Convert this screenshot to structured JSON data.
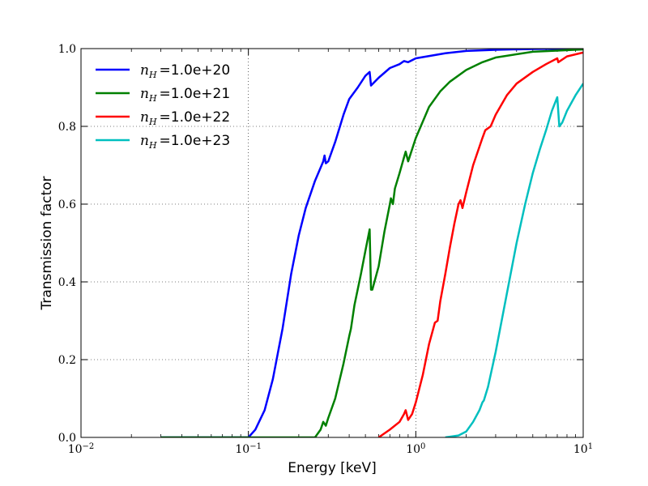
{
  "chart_data": {
    "type": "line",
    "xlabel": "Energy [keV]",
    "ylabel": "Transmission factor",
    "xscale": "log",
    "xlim": [
      0.01,
      10
    ],
    "ylim": [
      0.0,
      1.0
    ],
    "grid": true,
    "legend_position": "top-left",
    "x_ticks": [
      {
        "value": 0.01,
        "base": "10",
        "exp": "−2"
      },
      {
        "value": 0.1,
        "base": "10",
        "exp": "−1"
      },
      {
        "value": 1,
        "base": "10",
        "exp": "0"
      },
      {
        "value": 10,
        "base": "10",
        "exp": "1"
      }
    ],
    "y_ticks": [
      {
        "value": 0.0,
        "label": "0.0"
      },
      {
        "value": 0.2,
        "label": "0.2"
      },
      {
        "value": 0.4,
        "label": "0.4"
      },
      {
        "value": 0.6,
        "label": "0.6"
      },
      {
        "value": 0.8,
        "label": "0.8"
      },
      {
        "value": 1.0,
        "label": "1.0"
      }
    ],
    "series": [
      {
        "name": "n_H =1.0e+20",
        "legend_symbol": "n",
        "legend_sub": "H",
        "legend_value": "=1.0e+20",
        "color": "#0000ff",
        "points": [
          [
            0.03,
            0.0
          ],
          [
            0.1,
            0.0
          ],
          [
            0.11,
            0.02
          ],
          [
            0.125,
            0.07
          ],
          [
            0.14,
            0.15
          ],
          [
            0.16,
            0.28
          ],
          [
            0.18,
            0.42
          ],
          [
            0.2,
            0.52
          ],
          [
            0.22,
            0.59
          ],
          [
            0.25,
            0.66
          ],
          [
            0.28,
            0.71
          ],
          [
            0.285,
            0.725
          ],
          [
            0.29,
            0.705
          ],
          [
            0.3,
            0.71
          ],
          [
            0.33,
            0.76
          ],
          [
            0.37,
            0.83
          ],
          [
            0.4,
            0.87
          ],
          [
            0.45,
            0.9
          ],
          [
            0.5,
            0.93
          ],
          [
            0.53,
            0.94
          ],
          [
            0.54,
            0.905
          ],
          [
            0.6,
            0.925
          ],
          [
            0.7,
            0.95
          ],
          [
            0.8,
            0.96
          ],
          [
            0.85,
            0.968
          ],
          [
            0.9,
            0.965
          ],
          [
            1.0,
            0.975
          ],
          [
            1.5,
            0.988
          ],
          [
            2,
            0.994
          ],
          [
            3,
            0.997
          ],
          [
            5,
            0.999
          ],
          [
            10,
            1.0
          ]
        ]
      },
      {
        "name": "n_H =1.0e+21",
        "legend_symbol": "n",
        "legend_sub": "H",
        "legend_value": "=1.0e+21",
        "color": "#008000",
        "points": [
          [
            0.03,
            0.0
          ],
          [
            0.25,
            0.0
          ],
          [
            0.27,
            0.02
          ],
          [
            0.28,
            0.04
          ],
          [
            0.29,
            0.03
          ],
          [
            0.3,
            0.05
          ],
          [
            0.33,
            0.1
          ],
          [
            0.37,
            0.19
          ],
          [
            0.4,
            0.26
          ],
          [
            0.41,
            0.28
          ],
          [
            0.43,
            0.34
          ],
          [
            0.47,
            0.42
          ],
          [
            0.5,
            0.48
          ],
          [
            0.53,
            0.535
          ],
          [
            0.54,
            0.38
          ],
          [
            0.55,
            0.38
          ],
          [
            0.6,
            0.44
          ],
          [
            0.65,
            0.53
          ],
          [
            0.7,
            0.6
          ],
          [
            0.71,
            0.615
          ],
          [
            0.73,
            0.6
          ],
          [
            0.75,
            0.64
          ],
          [
            0.8,
            0.68
          ],
          [
            0.85,
            0.72
          ],
          [
            0.87,
            0.735
          ],
          [
            0.9,
            0.71
          ],
          [
            1.0,
            0.77
          ],
          [
            1.2,
            0.85
          ],
          [
            1.4,
            0.89
          ],
          [
            1.6,
            0.915
          ],
          [
            2,
            0.945
          ],
          [
            2.5,
            0.965
          ],
          [
            3,
            0.977
          ],
          [
            5,
            0.992
          ],
          [
            10,
            0.998
          ]
        ]
      },
      {
        "name": "n_H =1.0e+22",
        "legend_symbol": "n",
        "legend_sub": "H",
        "legend_value": "=1.0e+22",
        "color": "#ff0000",
        "points": [
          [
            0.6,
            0.0
          ],
          [
            0.7,
            0.02
          ],
          [
            0.8,
            0.04
          ],
          [
            0.85,
            0.06
          ],
          [
            0.87,
            0.07
          ],
          [
            0.9,
            0.045
          ],
          [
            0.95,
            0.06
          ],
          [
            1.0,
            0.09
          ],
          [
            1.1,
            0.16
          ],
          [
            1.2,
            0.24
          ],
          [
            1.3,
            0.295
          ],
          [
            1.35,
            0.3
          ],
          [
            1.4,
            0.35
          ],
          [
            1.5,
            0.42
          ],
          [
            1.6,
            0.49
          ],
          [
            1.7,
            0.55
          ],
          [
            1.8,
            0.6
          ],
          [
            1.85,
            0.61
          ],
          [
            1.9,
            0.59
          ],
          [
            2,
            0.63
          ],
          [
            2.2,
            0.7
          ],
          [
            2.5,
            0.77
          ],
          [
            2.6,
            0.79
          ],
          [
            2.8,
            0.8
          ],
          [
            3,
            0.83
          ],
          [
            3.5,
            0.88
          ],
          [
            4,
            0.91
          ],
          [
            5,
            0.94
          ],
          [
            6,
            0.96
          ],
          [
            7,
            0.975
          ],
          [
            7.1,
            0.965
          ],
          [
            8,
            0.98
          ],
          [
            10,
            0.99
          ]
        ]
      },
      {
        "name": "n_H =1.0e+23",
        "legend_symbol": "n",
        "legend_sub": "H",
        "legend_value": "=1.0e+23",
        "color": "#00bfbf",
        "points": [
          [
            1.5,
            0.0
          ],
          [
            1.8,
            0.005
          ],
          [
            2.0,
            0.015
          ],
          [
            2.2,
            0.04
          ],
          [
            2.4,
            0.07
          ],
          [
            2.5,
            0.09
          ],
          [
            2.55,
            0.095
          ],
          [
            2.7,
            0.13
          ],
          [
            3,
            0.22
          ],
          [
            3.5,
            0.37
          ],
          [
            4,
            0.5
          ],
          [
            4.5,
            0.6
          ],
          [
            5,
            0.68
          ],
          [
            5.5,
            0.74
          ],
          [
            6,
            0.79
          ],
          [
            6.5,
            0.84
          ],
          [
            7.0,
            0.875
          ],
          [
            7.2,
            0.8
          ],
          [
            7.5,
            0.81
          ],
          [
            8,
            0.84
          ],
          [
            9,
            0.88
          ],
          [
            10,
            0.91
          ]
        ]
      }
    ]
  }
}
